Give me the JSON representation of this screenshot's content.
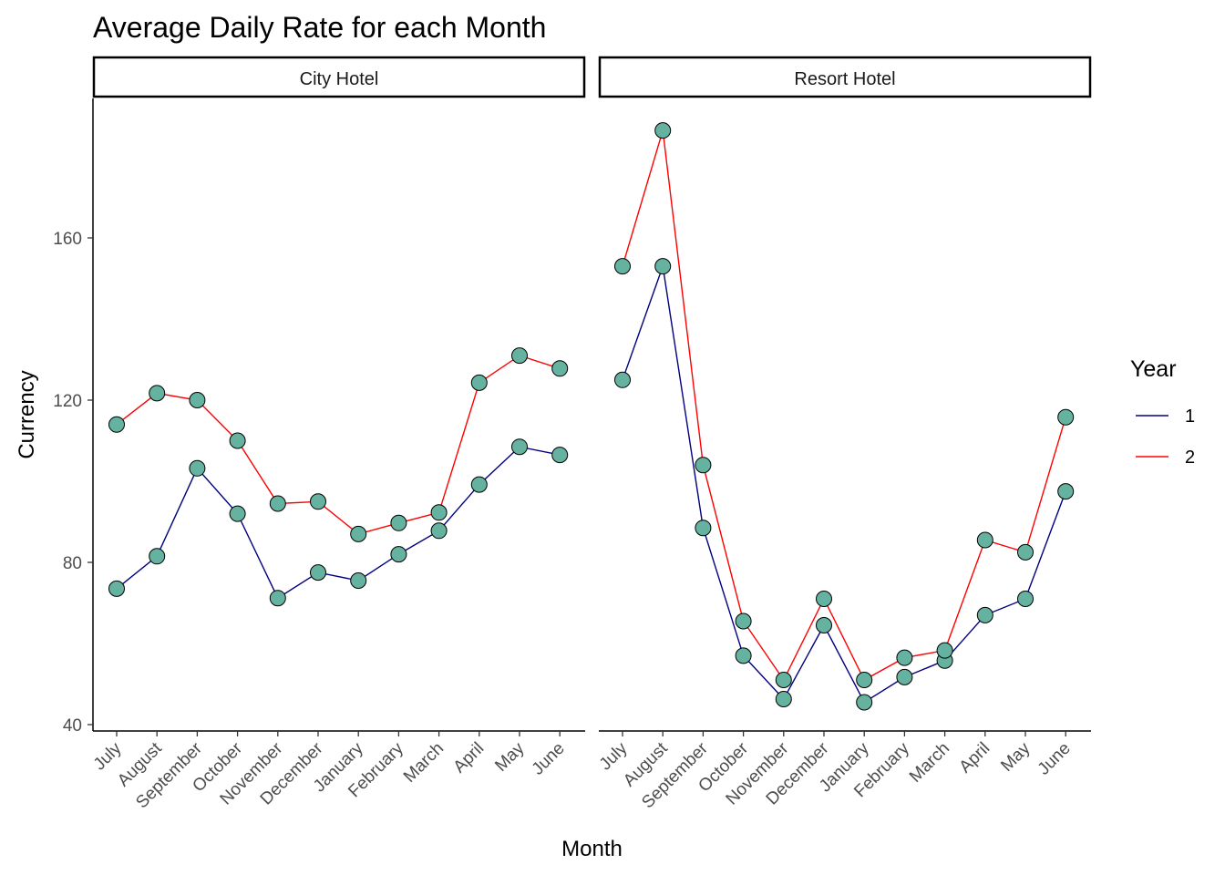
{
  "chart_data": {
    "type": "line",
    "title": "Average Daily Rate for each Month",
    "xlabel": "Month",
    "ylabel": "Currency",
    "ylim": [
      40,
      195
    ],
    "yticks": [
      40,
      80,
      120,
      160
    ],
    "categories": [
      "July",
      "August",
      "September",
      "October",
      "November",
      "December",
      "January",
      "February",
      "March",
      "April",
      "May",
      "June"
    ],
    "legend": {
      "title": "Year",
      "position": "right",
      "entries": [
        {
          "label": "1",
          "color": "#000080"
        },
        {
          "label": "2",
          "color": "#ff0000"
        }
      ]
    },
    "point_color": "#66b2a0",
    "grid": false,
    "panels": [
      {
        "name": "City Hotel",
        "series": [
          {
            "name": "1",
            "color": "#000080",
            "values": [
              73.5,
              81.5,
              103.2,
              92.0,
              71.2,
              77.5,
              75.5,
              82.0,
              87.8,
              99.2,
              108.5,
              106.5
            ]
          },
          {
            "name": "2",
            "color": "#ff0000",
            "values": [
              114.0,
              121.7,
              120.0,
              110.0,
              94.5,
              95.0,
              87.0,
              89.7,
              92.3,
              124.3,
              131.0,
              127.8
            ]
          }
        ]
      },
      {
        "name": "Resort Hotel",
        "series": [
          {
            "name": "1",
            "color": "#000080",
            "values": [
              125.0,
              153.0,
              88.5,
              57.0,
              46.3,
              64.5,
              45.5,
              51.7,
              55.8,
              67.0,
              71.0,
              97.5
            ]
          },
          {
            "name": "2",
            "color": "#ff0000",
            "values": [
              153.0,
              186.5,
              104.0,
              65.5,
              51.0,
              71.0,
              51.0,
              56.5,
              58.3,
              85.5,
              82.5,
              115.8
            ]
          }
        ]
      }
    ]
  }
}
